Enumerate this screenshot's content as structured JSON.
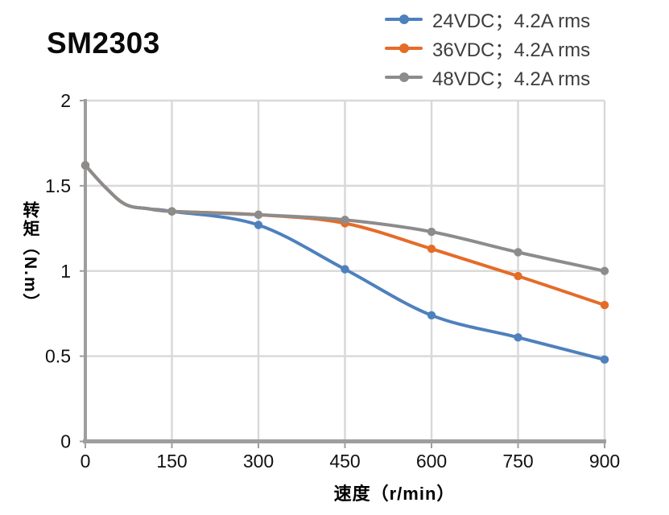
{
  "title": "SM2303",
  "colors": {
    "series_blue": "#4E80BD",
    "series_orange": "#E46C29",
    "series_gray": "#8C8C8C",
    "gridline": "#D9D9D9",
    "axis_spine": "#9E9E9E",
    "tick_text": "#111111",
    "legend_text": "#3D3D3D",
    "title_text": "#0A0A0A"
  },
  "chart_data": {
    "type": "line",
    "title": "SM2303",
    "xlabel": "速度（r/min）",
    "ylabel": "转矩（N.m）",
    "xlim": [
      0,
      900
    ],
    "ylim": [
      0,
      2
    ],
    "x_ticks": [
      0,
      150,
      300,
      450,
      600,
      750,
      900
    ],
    "y_ticks": [
      0,
      0.5,
      1,
      1.5,
      2
    ],
    "grid": true,
    "legend_position": "top-right",
    "x": [
      0,
      150,
      300,
      450,
      600,
      750,
      900
    ],
    "series": [
      {
        "name": "24VDC；4.2A rms",
        "color": "#4E80BD",
        "values": [
          1.62,
          1.35,
          1.27,
          1.01,
          0.74,
          0.61,
          0.48
        ]
      },
      {
        "name": "36VDC；4.2A rms",
        "color": "#E46C29",
        "values": [
          1.62,
          1.35,
          1.33,
          1.28,
          1.13,
          0.97,
          0.8
        ]
      },
      {
        "name": "48VDC；4.2A rms",
        "color": "#8C8C8C",
        "values": [
          1.62,
          1.35,
          1.33,
          1.3,
          1.23,
          1.11,
          1.0
        ]
      }
    ],
    "lead_in_curve": [
      [
        0,
        1.62
      ],
      [
        35,
        1.49
      ],
      [
        70,
        1.39
      ],
      [
        110,
        1.365
      ],
      [
        150,
        1.35
      ]
    ]
  }
}
